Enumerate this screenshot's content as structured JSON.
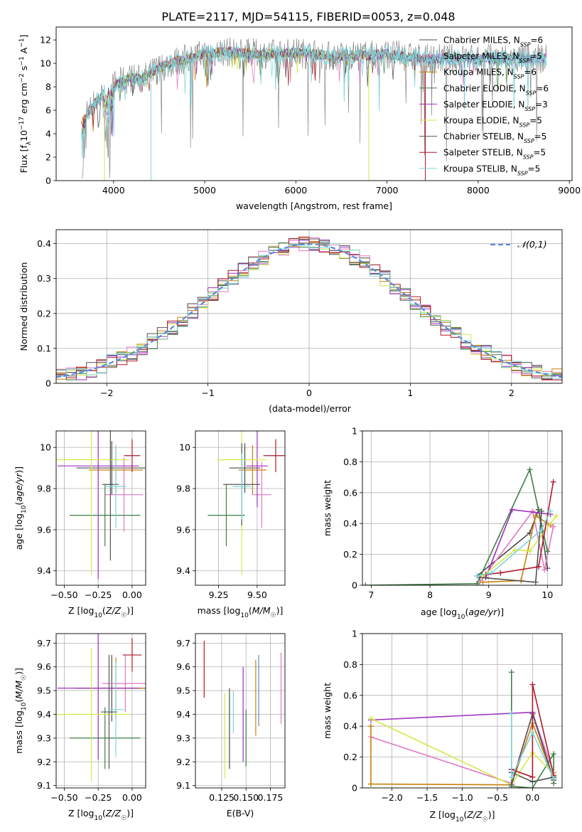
{
  "title": "PLATE=2117, MJD=54115, FIBERID=0053, z=0.048",
  "colors": {
    "chabrier_miles": "#4b4b4b",
    "salpeter_miles": "#e377c2",
    "kroupa_miles": "#c87f0a",
    "chabrier_elodie": "#3f7f45",
    "salpeter_elodie": "#9b30c0",
    "kroupa_elodie": "#d6e84a",
    "chabrier_stelib": "#555555",
    "salpeter_stelib": "#b2182b",
    "kroupa_stelib": "#7fd6dc",
    "normal_curve": "#5b8ad8",
    "grid": "#b0b0b0"
  },
  "chart_data": [
    {
      "id": "spectrum",
      "type": "line",
      "xlabel": "wavelength [Angstrom, rest frame]",
      "ylabel": "Flux [f_λ10^-17 erg cm^-2 s^-1 A^-1]",
      "xlim": [
        3370,
        9030
      ],
      "ylim": [
        0,
        13.1
      ],
      "xticks": [
        4000,
        5000,
        6000,
        7000,
        8000,
        9000
      ],
      "yticks": [
        0,
        2,
        4,
        6,
        8,
        10,
        12
      ],
      "grid": false,
      "legend_position": "right",
      "legend": [
        "Chabrier MILES, N_SSP=6",
        "Salpeter MILES, N_SSP=5",
        "Kroupa MILES, N_SSP=6",
        "Chabrier ELODIE, N_SSP=6",
        "Salpeter ELODIE, N_SSP=3",
        "Kroupa ELODIE, N_SSP=5",
        "Chabrier STELIB, N_SSP=5",
        "Salpeter STELIB, N_SSP=5",
        "Kroupa STELIB, N_SSP=5"
      ],
      "continuum": {
        "x": [
          3650,
          3700,
          3750,
          3800,
          3900,
          4000,
          4100,
          4200,
          4300,
          4400,
          4500,
          4600,
          4700,
          4800,
          4900,
          5000,
          5200,
          5400,
          5600,
          5800,
          6000,
          6200,
          6400,
          6600,
          6800,
          7000,
          7200,
          7400
        ],
        "y": [
          5.0,
          5.6,
          6.2,
          6.7,
          7.4,
          8.1,
          8.5,
          8.8,
          8.6,
          9.1,
          9.6,
          9.9,
          10.2,
          10.4,
          10.6,
          10.8,
          11.0,
          10.9,
          10.8,
          10.8,
          10.9,
          10.8,
          10.6,
          10.7,
          10.7,
          10.8,
          10.6,
          10.4
        ]
      },
      "cutoffs_wavelength": [
        3900,
        4410,
        6800,
        7420
      ]
    },
    {
      "id": "residuals",
      "type": "bar",
      "xlabel": "(data-model)/error",
      "ylabel": "Normed distribution",
      "xlim": [
        -2.5,
        2.5
      ],
      "ylim": [
        0,
        0.44
      ],
      "xticks": [
        -2,
        -1,
        0,
        1,
        2
      ],
      "yticks": [
        0.0,
        0.1,
        0.2,
        0.3,
        0.4
      ],
      "grid": true,
      "legend_position": "top-right",
      "legend": [
        "𝒩(0,1)"
      ],
      "bin_width": 0.1
    },
    {
      "id": "age_vs_Z",
      "type": "scatter",
      "xlabel": "Z [log10(Z/Z☉)]",
      "ylabel": "age  [log10(age/yr)]",
      "xlim": [
        -0.56,
        0.1
      ],
      "ylim": [
        9.33,
        10.08
      ],
      "xticks": [
        -0.5,
        -0.25,
        0.0
      ],
      "xtick_labels": [
        "−0.50",
        "−0.25",
        "0.00"
      ],
      "yticks": [
        9.4,
        9.6,
        9.8,
        10.0
      ],
      "grid": true,
      "points": [
        {
          "x": -0.15,
          "y": 9.9,
          "xerr": 0.26,
          "yerr": 0.13,
          "color": "chabrier_miles"
        },
        {
          "x": -0.06,
          "y": 9.77,
          "xerr": 0.14,
          "yerr": 0.18,
          "color": "salpeter_miles"
        },
        {
          "x": -0.12,
          "y": 9.89,
          "xerr": 0.2,
          "yerr": 0.12,
          "color": "kroupa_miles"
        },
        {
          "x": -0.2,
          "y": 9.67,
          "xerr": 0.26,
          "yerr": 0.15,
          "color": "chabrier_elodie"
        },
        {
          "x": -0.25,
          "y": 9.91,
          "xerr": 0.3,
          "yerr": 0.55,
          "color": "salpeter_elodie"
        },
        {
          "x": -0.3,
          "y": 9.94,
          "xerr": 0.28,
          "yerr": 0.56,
          "color": "kroupa_elodie"
        },
        {
          "x": -0.16,
          "y": 9.82,
          "xerr": 0.06,
          "yerr": 0.37,
          "color": "chabrier_stelib"
        },
        {
          "x": 0.0,
          "y": 9.96,
          "xerr": 0.06,
          "yerr": 0.08,
          "color": "salpeter_stelib"
        },
        {
          "x": -0.12,
          "y": 9.81,
          "xerr": 0.08,
          "yerr": 0.2,
          "color": "kroupa_stelib"
        }
      ]
    },
    {
      "id": "age_vs_mass",
      "type": "scatter",
      "xlabel": "mass [log10(M/M☉)]",
      "xlim": [
        9.1,
        9.68
      ],
      "ylim": [
        9.33,
        10.08
      ],
      "xticks": [
        9.25,
        9.5
      ],
      "xtick_labels": [
        "9.25",
        "9.50"
      ],
      "yticks": [
        9.4,
        9.6,
        9.8,
        10.0
      ],
      "grid": true,
      "points": [
        {
          "x": 9.42,
          "y": 9.9,
          "xerr": 0.1,
          "yerr": 0.12,
          "color": "chabrier_miles"
        },
        {
          "x": 9.53,
          "y": 9.77,
          "xerr": 0.06,
          "yerr": 0.16,
          "color": "salpeter_miles"
        },
        {
          "x": 9.47,
          "y": 9.89,
          "xerr": 0.09,
          "yerr": 0.12,
          "color": "kroupa_miles"
        },
        {
          "x": 9.3,
          "y": 9.67,
          "xerr": 0.12,
          "yerr": 0.15,
          "color": "chabrier_elodie"
        },
        {
          "x": 9.5,
          "y": 9.91,
          "xerr": 0.07,
          "yerr": 0.2,
          "color": "salpeter_elodie"
        },
        {
          "x": 9.4,
          "y": 9.94,
          "xerr": 0.16,
          "yerr": 0.56,
          "color": "kroupa_elodie"
        },
        {
          "x": 9.4,
          "y": 9.82,
          "xerr": 0.12,
          "yerr": 0.2,
          "color": "chabrier_stelib"
        },
        {
          "x": 9.62,
          "y": 9.96,
          "xerr": 0.08,
          "yerr": 0.08,
          "color": "salpeter_stelib"
        },
        {
          "x": 9.4,
          "y": 9.81,
          "xerr": 0.06,
          "yerr": 0.16,
          "color": "kroupa_stelib"
        }
      ]
    },
    {
      "id": "weight_vs_age",
      "type": "line",
      "xlabel": "age  [log10(age/yr)]",
      "ylabel": "mass weight",
      "xlim": [
        6.85,
        10.25
      ],
      "ylim": [
        0.0,
        1.0
      ],
      "xticks": [
        7,
        8,
        9,
        10
      ],
      "yticks": [
        0.0,
        0.2,
        0.4,
        0.6,
        0.8,
        1.0
      ],
      "grid": true,
      "series": [
        {
          "color": "chabrier_miles",
          "x": [
            8.8,
            9.7,
            9.85,
            10.0
          ],
          "y": [
            0.06,
            0.34,
            0.49,
            0.11
          ]
        },
        {
          "color": "salpeter_miles",
          "x": [
            8.85,
            9.75,
            9.95,
            10.1
          ],
          "y": [
            0.02,
            0.48,
            0.1,
            0.38
          ]
        },
        {
          "color": "kroupa_miles",
          "x": [
            8.9,
            9.55,
            9.8,
            10.05
          ],
          "y": [
            0.02,
            0.03,
            0.45,
            0.39
          ]
        },
        {
          "color": "chabrier_elodie",
          "x": [
            6.9,
            8.8,
            9.7,
            10.0
          ],
          "y": [
            0.0,
            0.01,
            0.75,
            0.22
          ]
        },
        {
          "color": "salpeter_elodie",
          "x": [
            8.95,
            9.4,
            10.05
          ],
          "y": [
            0.05,
            0.49,
            0.46
          ]
        },
        {
          "color": "kroupa_elodie",
          "x": [
            8.9,
            9.45,
            9.7,
            10.15
          ],
          "y": [
            0.06,
            0.23,
            0.22,
            0.45
          ]
        },
        {
          "color": "chabrier_stelib",
          "x": [
            8.85,
            9.8,
            9.9
          ],
          "y": [
            0.05,
            0.02,
            0.48
          ]
        },
        {
          "color": "salpeter_stelib",
          "x": [
            8.95,
            9.2,
            9.85,
            10.1
          ],
          "y": [
            0.07,
            0.08,
            0.12,
            0.67
          ]
        },
        {
          "color": "kroupa_stelib",
          "x": [
            8.8,
            9.05,
            9.9,
            10.05
          ],
          "y": [
            0.06,
            0.08,
            0.36,
            0.48
          ]
        }
      ]
    },
    {
      "id": "mass_vs_Z",
      "type": "scatter",
      "xlabel": "Z [log10(Z/Z☉)]",
      "ylabel": "mass [log10(M/M☉)]",
      "xlim": [
        -0.56,
        0.1
      ],
      "ylim": [
        9.09,
        9.74
      ],
      "xticks": [
        -0.5,
        -0.25,
        0.0
      ],
      "xtick_labels": [
        "−0.50",
        "−0.25",
        "0.00"
      ],
      "yticks": [
        9.1,
        9.2,
        9.3,
        9.4,
        9.5,
        9.6,
        9.7
      ],
      "grid": true,
      "points": [
        {
          "x": -0.15,
          "y": 9.51,
          "xerr": 0.26,
          "yerr": 0.14,
          "color": "chabrier_miles"
        },
        {
          "x": -0.05,
          "y": 9.53,
          "xerr": 0.17,
          "yerr": 0.12,
          "color": "salpeter_miles"
        },
        {
          "x": -0.12,
          "y": 9.51,
          "xerr": 0.22,
          "yerr": 0.13,
          "color": "kroupa_miles"
        },
        {
          "x": -0.2,
          "y": 9.3,
          "xerr": 0.26,
          "yerr": 0.13,
          "color": "chabrier_elodie"
        },
        {
          "x": -0.25,
          "y": 9.51,
          "xerr": 0.3,
          "yerr": 0.3,
          "color": "salpeter_elodie"
        },
        {
          "x": -0.3,
          "y": 9.4,
          "xerr": 0.28,
          "yerr": 0.28,
          "color": "kroupa_elodie"
        },
        {
          "x": -0.17,
          "y": 9.41,
          "xerr": 0.06,
          "yerr": 0.24,
          "color": "chabrier_stelib"
        },
        {
          "x": 0.0,
          "y": 9.65,
          "xerr": 0.07,
          "yerr": 0.07,
          "color": "salpeter_stelib"
        },
        {
          "x": -0.12,
          "y": 9.42,
          "xerr": 0.06,
          "yerr": 0.2,
          "color": "kroupa_stelib"
        }
      ]
    },
    {
      "id": "mass_vs_ebv",
      "type": "scatter",
      "xlabel": "E(B-V)",
      "xlim": [
        0.098,
        0.19
      ],
      "ylim": [
        9.09,
        9.74
      ],
      "xticks": [
        0.125,
        0.15,
        0.175
      ],
      "xtick_labels": [
        "0.125",
        "0.150",
        "0.175"
      ],
      "yticks": [
        9.1,
        9.2,
        9.3,
        9.4,
        9.5,
        9.6,
        9.7
      ],
      "grid": true,
      "points": [
        {
          "x": 0.107,
          "y": 9.59,
          "yerr": 0.12,
          "color": "salpeter_stelib"
        },
        {
          "x": 0.128,
          "y": 9.31,
          "yerr": 0.18,
          "color": "kroupa_elodie"
        },
        {
          "x": 0.133,
          "y": 9.34,
          "yerr": 0.17,
          "color": "chabrier_miles"
        },
        {
          "x": 0.137,
          "y": 9.41,
          "yerr": 0.09,
          "color": "kroupa_stelib"
        },
        {
          "x": 0.147,
          "y": 9.4,
          "yerr": 0.2,
          "color": "salpeter_elodie"
        },
        {
          "x": 0.15,
          "y": 9.3,
          "yerr": 0.12,
          "color": "chabrier_elodie"
        },
        {
          "x": 0.16,
          "y": 9.47,
          "yerr": 0.16,
          "color": "kroupa_miles"
        },
        {
          "x": 0.163,
          "y": 9.5,
          "yerr": 0.15,
          "color": "normal_curve"
        },
        {
          "x": 0.186,
          "y": 9.51,
          "yerr": 0.15,
          "color": "salpeter_miles"
        }
      ]
    },
    {
      "id": "weight_vs_Z",
      "type": "line",
      "xlabel": "Z [log10(Z/Z☉)]",
      "ylabel": "mass weight",
      "xlim": [
        -2.42,
        0.42
      ],
      "ylim": [
        0.0,
        1.0
      ],
      "xticks": [
        -2.0,
        -1.5,
        -1.0,
        -0.5,
        0.0
      ],
      "xtick_labels": [
        "−2.0",
        "−1.5",
        "−1.0",
        "−0.5",
        "0.0"
      ],
      "yticks": [
        0.0,
        0.2,
        0.4,
        0.6,
        0.8,
        1.0
      ],
      "grid": true,
      "series": [
        {
          "color": "chabrier_miles",
          "x": [
            -0.3,
            0.0,
            0.3
          ],
          "y": [
            0.1,
            0.04,
            0.07
          ]
        },
        {
          "color": "salpeter_miles",
          "x": [
            -2.3,
            -0.3,
            0.0,
            0.3
          ],
          "y": [
            0.33,
            0.03,
            0.48,
            0.1
          ]
        },
        {
          "color": "kroupa_miles",
          "x": [
            -2.3,
            -2.3,
            -0.3,
            0.0,
            0.3
          ],
          "y": [
            0.4,
            0.025,
            0.02,
            0.42,
            0.06
          ]
        },
        {
          "color": "chabrier_elodie",
          "x": [
            -0.3,
            -0.3,
            0.0,
            0.3,
            0.3
          ],
          "y": [
            0.75,
            0.01,
            0.0,
            0.22,
            0.03
          ]
        },
        {
          "color": "salpeter_elodie",
          "x": [
            -2.3,
            0.0,
            0.3
          ],
          "y": [
            0.44,
            0.49,
            0.05
          ]
        },
        {
          "color": "kroupa_elodie",
          "x": [
            -2.3,
            -0.3,
            0.0,
            0.3
          ],
          "y": [
            0.45,
            0.02,
            0.23,
            0.09
          ]
        },
        {
          "color": "chabrier_stelib",
          "x": [
            -0.3,
            0.0,
            0.3
          ],
          "y": [
            0.02,
            0.48,
            0.05
          ]
        },
        {
          "color": "salpeter_stelib",
          "x": [
            -0.3,
            0.0,
            0.0,
            0.3
          ],
          "y": [
            0.12,
            0.07,
            0.67,
            0.08
          ]
        },
        {
          "color": "kroupa_stelib",
          "x": [
            -0.3,
            -0.3,
            0.0,
            0.3
          ],
          "y": [
            0.48,
            0.07,
            0.36,
            0.06
          ]
        }
      ]
    }
  ]
}
